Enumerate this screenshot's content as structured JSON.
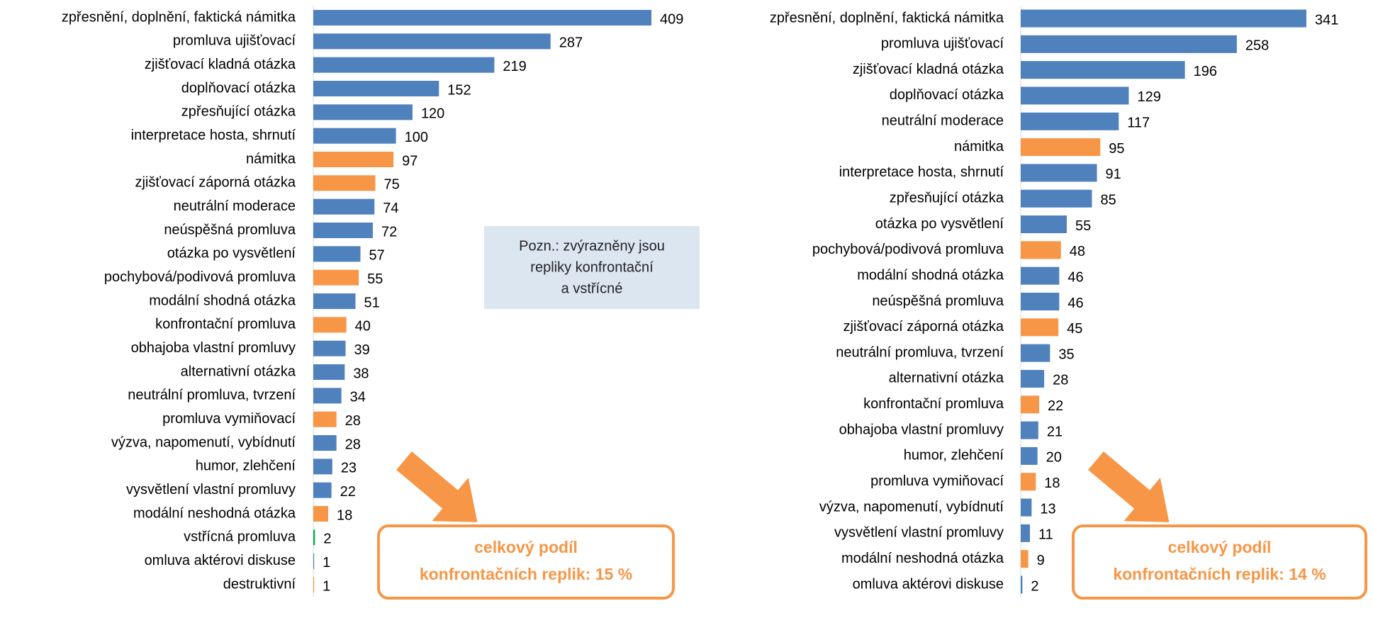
{
  "chart_data": [
    {
      "type": "bar",
      "orientation": "horizontal",
      "categories": [
        "zpřesnění, doplnění, faktická námitka",
        "promluva ujišťovací",
        "zjišťovací kladná otázka",
        "doplňovací otázka",
        "zpřesňující otázka",
        "interpretace hosta, shrnutí",
        "námitka",
        "zjišťovací záporná otázka",
        "neutrální moderace",
        "neúspěšná promluva",
        "otázka po vysvětlení",
        "pochybová/podivová promluva",
        "modální shodná otázka",
        "konfrontační promluva",
        "obhajoba vlastní promluvy",
        "alternativní otázka",
        "neutrální promluva, tvrzení",
        "promluva vymiňovací",
        "výzva, napomenutí, vybídnutí",
        "humor, zlehčení",
        "vysvětlení vlastní promluvy",
        "modální neshodná otázka",
        "vstřícná promluva",
        "omluva aktérovi diskuse",
        "destruktivní"
      ],
      "values": [
        409,
        287,
        219,
        152,
        120,
        100,
        97,
        75,
        74,
        72,
        57,
        55,
        51,
        40,
        39,
        38,
        34,
        28,
        28,
        23,
        22,
        18,
        2,
        1,
        1
      ],
      "colors": [
        "#4f81bd",
        "#4f81bd",
        "#4f81bd",
        "#4f81bd",
        "#4f81bd",
        "#4f81bd",
        "#f79646",
        "#f79646",
        "#4f81bd",
        "#4f81bd",
        "#4f81bd",
        "#f79646",
        "#4f81bd",
        "#f79646",
        "#4f81bd",
        "#4f81bd",
        "#4f81bd",
        "#f79646",
        "#4f81bd",
        "#4f81bd",
        "#4f81bd",
        "#f79646",
        "#00b050",
        "#4f81bd",
        "#f79646"
      ],
      "callout": [
        "celkový podíl",
        "konfrontačních replik: 15 %"
      ]
    },
    {
      "type": "bar",
      "orientation": "horizontal",
      "categories": [
        "zpřesnění, doplnění, faktická námitka",
        "promluva ujišťovací",
        "zjišťovací kladná otázka",
        "doplňovací otázka",
        "neutrální moderace",
        "námitka",
        "interpretace hosta, shrnutí",
        "zpřesňující otázka",
        "otázka po vysvětlení",
        "pochybová/podivová promluva",
        "modální shodná otázka",
        "neúspěšná promluva",
        "zjišťovací záporná otázka",
        "neutrální promluva, tvrzení",
        "alternativní otázka",
        "konfrontační promluva",
        "obhajoba vlastní promluvy",
        "humor, zlehčení",
        "promluva vymiňovací",
        "výzva, napomenutí, vybídnutí",
        "vysvětlení vlastní promluvy",
        "modální neshodná otázka",
        "omluva aktérovi diskuse"
      ],
      "values": [
        341,
        258,
        196,
        129,
        117,
        95,
        91,
        85,
        55,
        48,
        46,
        46,
        45,
        35,
        28,
        22,
        21,
        20,
        18,
        13,
        11,
        9,
        2
      ],
      "colors": [
        "#4f81bd",
        "#4f81bd",
        "#4f81bd",
        "#4f81bd",
        "#4f81bd",
        "#f79646",
        "#4f81bd",
        "#4f81bd",
        "#4f81bd",
        "#f79646",
        "#4f81bd",
        "#4f81bd",
        "#f79646",
        "#4f81bd",
        "#4f81bd",
        "#f79646",
        "#4f81bd",
        "#4f81bd",
        "#f79646",
        "#4f81bd",
        "#4f81bd",
        "#f79646",
        "#4f81bd"
      ],
      "callout": [
        "celkový podíl",
        "konfrontačních replik: 14 %"
      ]
    }
  ],
  "note": [
    "Pozn.: zvýrazněny jsou",
    "repliky konfrontační",
    "a vstřícné"
  ]
}
